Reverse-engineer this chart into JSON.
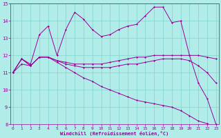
{
  "xlabel": "Windchill (Refroidissement éolien,°C)",
  "bg_color": "#b2ece8",
  "line_color": "#990099",
  "grid_color": "#80d4cc",
  "xmin": 0,
  "xmax": 23,
  "ymin": 8,
  "ymax": 15,
  "lines": [
    {
      "x": [
        0,
        1,
        2,
        3,
        4,
        5,
        6,
        7,
        8,
        9,
        10,
        11,
        12,
        13,
        14,
        15,
        16,
        17,
        18,
        19,
        20,
        21,
        22,
        23
      ],
      "y": [
        11.0,
        11.8,
        11.5,
        13.2,
        13.7,
        12.0,
        13.5,
        14.5,
        14.1,
        13.5,
        13.1,
        13.2,
        13.5,
        13.7,
        13.8,
        14.3,
        14.8,
        14.8,
        13.9,
        14.0,
        12.0,
        10.4,
        9.5,
        8.0
      ]
    },
    {
      "x": [
        0,
        1,
        2,
        3,
        4,
        5,
        6,
        7,
        8,
        9,
        10,
        11,
        12,
        13,
        14,
        15,
        16,
        17,
        18,
        19,
        20,
        21,
        22,
        23
      ],
      "y": [
        11.0,
        11.8,
        11.4,
        11.9,
        11.9,
        11.7,
        11.6,
        11.5,
        11.5,
        11.5,
        11.5,
        11.6,
        11.7,
        11.8,
        11.9,
        11.9,
        12.0,
        12.0,
        12.0,
        12.0,
        12.0,
        12.0,
        11.9,
        11.8
      ]
    },
    {
      "x": [
        0,
        1,
        2,
        3,
        4,
        5,
        6,
        7,
        8,
        9,
        10,
        11,
        12,
        13,
        14,
        15,
        16,
        17,
        18,
        19,
        20,
        21,
        22,
        23
      ],
      "y": [
        11.0,
        11.8,
        11.4,
        11.9,
        11.9,
        11.7,
        11.5,
        11.4,
        11.3,
        11.3,
        11.3,
        11.3,
        11.4,
        11.5,
        11.5,
        11.6,
        11.7,
        11.8,
        11.8,
        11.8,
        11.7,
        11.4,
        11.0,
        10.4
      ]
    },
    {
      "x": [
        0,
        1,
        2,
        3,
        4,
        5,
        6,
        7,
        8,
        9,
        10,
        11,
        12,
        13,
        14,
        15,
        16,
        17,
        18,
        19,
        20,
        21,
        22,
        23
      ],
      "y": [
        11.0,
        11.5,
        11.4,
        11.9,
        11.9,
        11.6,
        11.3,
        11.0,
        10.7,
        10.5,
        10.2,
        10.0,
        9.8,
        9.6,
        9.4,
        9.3,
        9.2,
        9.1,
        9.0,
        8.8,
        8.5,
        8.2,
        8.05,
        7.8
      ]
    }
  ]
}
